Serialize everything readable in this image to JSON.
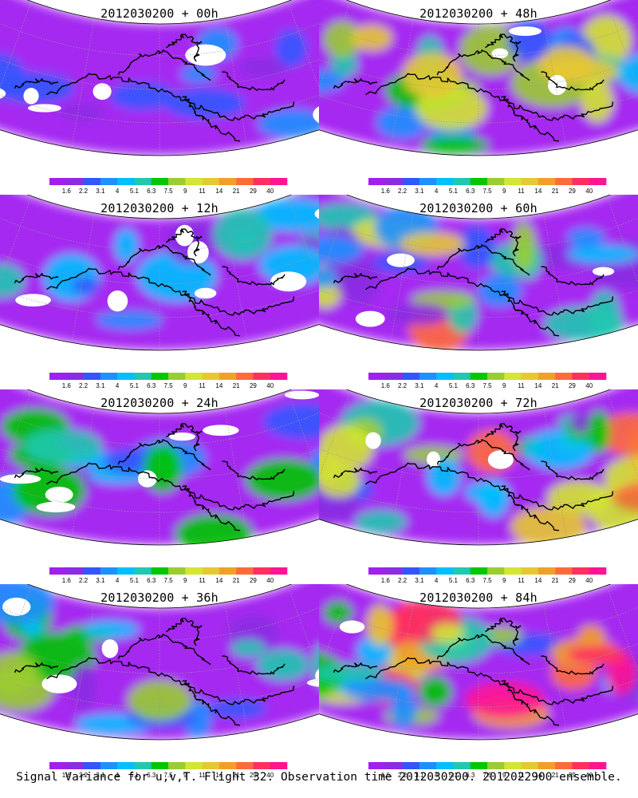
{
  "panels": [
    {
      "title": "2012030200 + 00h",
      "lead_hours": 0
    },
    {
      "title": "2012030200 + 48h",
      "lead_hours": 48
    },
    {
      "title": "2012030200 + 12h",
      "lead_hours": 12
    },
    {
      "title": "2012030200 + 60h",
      "lead_hours": 60
    },
    {
      "title": "2012030200 + 24h",
      "lead_hours": 24
    },
    {
      "title": "2012030200 + 72h",
      "lead_hours": 72
    },
    {
      "title": "2012030200 + 36h",
      "lead_hours": 36
    },
    {
      "title": "2012030200 + 84h",
      "lead_hours": 84
    }
  ],
  "colorbar": {
    "labels": [
      "1.6",
      "2.2",
      "3.1",
      "4",
      "5.1",
      "6.3",
      "7.5",
      "9",
      "11",
      "14",
      "21",
      "29",
      "40"
    ],
    "colors": [
      "#a020f0",
      "#8b2be2",
      "#3355ff",
      "#1e90ff",
      "#00bfff",
      "#20c8b0",
      "#00c800",
      "#9acd32",
      "#d2e632",
      "#e6c832",
      "#f0a028",
      "#ff6a3d",
      "#ff3060",
      "#ff1493"
    ]
  },
  "caption": "Signal Variance for u,v,T. Flight 32. Observation time 2012030200. 2012022900 ensemble."
}
